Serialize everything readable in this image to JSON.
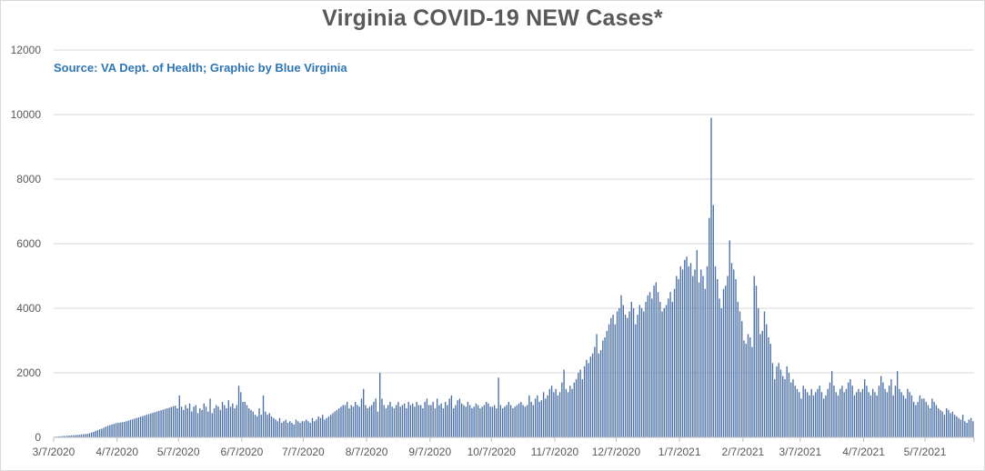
{
  "chart_data": {
    "type": "bar",
    "title": "Virginia COVID-19 NEW Cases*",
    "subtitle": "Source: VA Dept. of Health; Graphic by Blue Virginia",
    "xlabel": "",
    "ylabel": "",
    "ylim": [
      0,
      12000
    ],
    "y_ticks": [
      0,
      2000,
      4000,
      6000,
      8000,
      10000,
      12000
    ],
    "x_tick_labels": [
      "3/7/2020",
      "4/7/2020",
      "5/7/2020",
      "6/7/2020",
      "7/7/2020",
      "8/7/2020",
      "9/7/2020",
      "10/7/2020",
      "11/7/2020",
      "12/7/2020",
      "1/7/2021",
      "2/7/2021",
      "3/7/2021",
      "4/7/2021",
      "5/7/2021"
    ],
    "grid": "horizontal",
    "bar_color": "#4a6fa5",
    "x_start": "3/7/2020",
    "x_end": "5/30/2021",
    "values": [
      20,
      25,
      30,
      35,
      40,
      45,
      50,
      55,
      60,
      65,
      70,
      75,
      80,
      90,
      95,
      100,
      110,
      130,
      150,
      170,
      200,
      220,
      250,
      270,
      300,
      330,
      360,
      380,
      400,
      420,
      440,
      450,
      460,
      470,
      480,
      500,
      520,
      540,
      560,
      580,
      600,
      620,
      640,
      660,
      680,
      700,
      720,
      740,
      760,
      780,
      800,
      820,
      840,
      860,
      880,
      900,
      920,
      940,
      960,
      980,
      900,
      1300,
      950,
      850,
      1000,
      900,
      1050,
      800,
      950,
      1000,
      750,
      900,
      850,
      1050,
      950,
      800,
      1200,
      750,
      900,
      1000,
      950,
      850,
      1100,
      1000,
      900,
      1150,
      950,
      1050,
      900,
      1000,
      1600,
      1400,
      1100,
      1100,
      1000,
      900,
      850,
      800,
      700,
      650,
      900,
      700,
      1300,
      800,
      700,
      750,
      650,
      600,
      550,
      500,
      600,
      450,
      500,
      550,
      450,
      500,
      450,
      400,
      550,
      500,
      450,
      500,
      500,
      550,
      500,
      450,
      600,
      500,
      550,
      650,
      600,
      700,
      550,
      600,
      650,
      700,
      750,
      800,
      850,
      900,
      950,
      1000,
      1000,
      1100,
      900,
      1000,
      950,
      1100,
      1000,
      950,
      1200,
      1500,
      1000,
      900,
      950,
      1000,
      1100,
      1200,
      800,
      2000,
      1200,
      1000,
      900,
      1000,
      1100,
      950,
      900,
      1000,
      1100,
      950,
      1000,
      1050,
      900,
      1100,
      1000,
      1050,
      950,
      1100,
      1000,
      1000,
      900,
      1100,
      1200,
      1000,
      1000,
      1100,
      900,
      1200,
      1000,
      1050,
      900,
      1100,
      1000,
      1200,
      1300,
      900,
      1000,
      1150,
      1200,
      1050,
      1000,
      950,
      1100,
      1000,
      900,
      950,
      1050,
      1000,
      900,
      950,
      1000,
      1100,
      1050,
      950,
      950,
      1000,
      900,
      1850,
      1000,
      900,
      950,
      1000,
      1100,
      1000,
      900,
      950,
      1000,
      1050,
      1100,
      1000,
      950,
      1000,
      1300,
      1100,
      1000,
      1200,
      1300,
      1100,
      1150,
      1400,
      1200,
      1300,
      1500,
      1600,
      1400,
      1500,
      1300,
      1400,
      1700,
      2100,
      1500,
      1400,
      1600,
      1500,
      1700,
      1800,
      2000,
      2100,
      1800,
      2200,
      2400,
      2300,
      2500,
      2600,
      2800,
      3200,
      2600,
      2700,
      3000,
      3100,
      3300,
      3500,
      3700,
      3800,
      3500,
      3900,
      4000,
      4400,
      4100,
      3800,
      3700,
      3900,
      4200,
      4000,
      3500,
      3800,
      4100,
      4000,
      3900,
      4200,
      4400,
      4500,
      4300,
      4700,
      4800,
      4500,
      4200,
      3900,
      4000,
      4100,
      4300,
      4500,
      4200,
      4600,
      5000,
      4900,
      5300,
      5200,
      5500,
      5600,
      5300,
      5400,
      5000,
      5200,
      5800,
      4800,
      5200,
      5000,
      4600,
      5300,
      6800,
      9900,
      7200,
      5300,
      4900,
      4300,
      4000,
      4600,
      4700,
      5000,
      6100,
      5400,
      5200,
      4900,
      4200,
      3900,
      3600,
      3000,
      2900,
      3200,
      3100,
      2800,
      5000,
      4700,
      4000,
      3200,
      3300,
      3900,
      3500,
      3100,
      2900,
      2300,
      1800,
      2200,
      2300,
      2100,
      1900,
      1800,
      2200,
      2000,
      1700,
      1800,
      1600,
      1500,
      1400,
      1200,
      1600,
      1500,
      1400,
      1300,
      1500,
      1300,
      1400,
      1500,
      1600,
      1400,
      1200,
      1300,
      1500,
      1700,
      2050,
      1600,
      1400,
      1300,
      1500,
      1600,
      1400,
      1500,
      1700,
      1800,
      1600,
      1300,
      1400,
      1500,
      1400,
      1500,
      1800,
      1600,
      1400,
      1300,
      1500,
      1400,
      1300,
      1600,
      1900,
      1700,
      1500,
      1400,
      1600,
      1800,
      1300,
      1600,
      2050,
      1500,
      1400,
      1300,
      1200,
      1500,
      1400,
      1300,
      1100,
      1000,
      1100,
      1300,
      1200,
      1200,
      1100,
      1000,
      900,
      1200,
      1100,
      1000,
      900,
      850,
      800,
      700,
      900,
      850,
      750,
      800,
      700,
      650,
      600,
      550,
      700,
      500,
      450,
      550,
      600,
      500,
      450,
      400,
      550,
      650,
      400,
      350,
      300,
      250,
      200
    ]
  }
}
